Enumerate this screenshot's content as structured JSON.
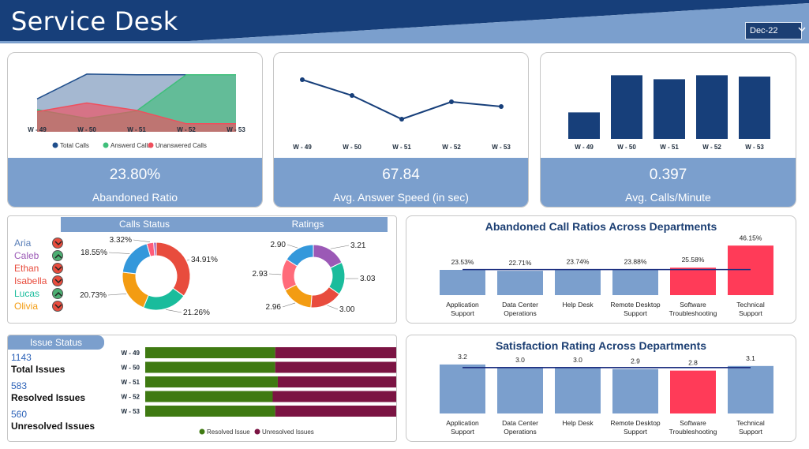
{
  "header": {
    "title": "Service Desk",
    "month_selector": "Dec-22",
    "colors": {
      "navy": "#173f7a",
      "steel": "#7b9fcd"
    }
  },
  "kpis": {
    "abandoned": {
      "value": "23.80%",
      "label": "Abandoned Ratio"
    },
    "answer_speed": {
      "value": "67.84",
      "label": "Avg. Answer Speed (in sec)"
    },
    "calls_per_minute": {
      "value": "0.397",
      "label": "Avg. Calls/Minute"
    }
  },
  "people": [
    {
      "name": "Aria",
      "trend": "down",
      "color": "#5a7fb8"
    },
    {
      "name": "Caleb",
      "trend": "up",
      "color": "#9b59b6"
    },
    {
      "name": "Ethan",
      "trend": "down",
      "color": "#e84c3d"
    },
    {
      "name": "Isabella",
      "trend": "down",
      "color": "#e84c3d"
    },
    {
      "name": "Lucas",
      "trend": "up",
      "color": "#1abc9c"
    },
    {
      "name": "Olivia",
      "trend": "down",
      "color": "#f39c12"
    }
  ],
  "panels": {
    "calls_status_header": "Calls Status",
    "ratings_header": "Ratings",
    "abandoned_dept_title": "Abandoned Call Ratios Across Departments",
    "satisfaction_title": "Satisfaction Rating Across Departments",
    "issue_status_header": "Issue Status"
  },
  "issues": {
    "total": {
      "value": "1143",
      "label": "Total Issues"
    },
    "resolved": {
      "value": "583",
      "label": "Resolved Issues"
    },
    "unresolved": {
      "value": "560",
      "label": "Unresolved Issues"
    }
  },
  "chart_data": [
    {
      "id": "calls_area",
      "type": "area",
      "categories": [
        "W - 49",
        "W - 50",
        "W - 51",
        "W - 52",
        "W - 53"
      ],
      "series": [
        {
          "name": "Total Calls",
          "color": "#1f4e8c",
          "values": [
            49,
            86,
            85,
            85,
            85
          ]
        },
        {
          "name": "Answerd Calls",
          "color": "#3fbf7a",
          "values": [
            33,
            20,
            31,
            85,
            85
          ]
        },
        {
          "name": "Unanswered Calls",
          "color": "#ef4f5d",
          "values": [
            30,
            43,
            32,
            12,
            12
          ]
        }
      ],
      "ylim": [
        0,
        100
      ]
    },
    {
      "id": "answer_speed_line",
      "type": "line",
      "categories": [
        "W - 49",
        "W - 50",
        "W - 51",
        "W - 52",
        "W - 53"
      ],
      "series": [
        {
          "values": [
            78,
            68,
            53,
            64,
            61
          ],
          "color": "#173f7a"
        }
      ],
      "ylim": [
        40,
        85
      ]
    },
    {
      "id": "calls_per_minute_bars",
      "type": "bar",
      "categories": [
        "W - 49",
        "W - 50",
        "W - 51",
        "W - 52",
        "W - 53"
      ],
      "values": [
        0.2,
        0.48,
        0.45,
        0.48,
        0.47
      ],
      "ylim": [
        0,
        0.5
      ],
      "color": "#173f7a"
    },
    {
      "id": "calls_status_donut",
      "type": "pie",
      "slices": [
        {
          "value": 34.91,
          "label": "34.91%",
          "color": "#e84c3d"
        },
        {
          "value": 21.26,
          "label": "21.26%",
          "color": "#1abc9c"
        },
        {
          "value": 20.73,
          "label": "20.73%",
          "color": "#f39c12"
        },
        {
          "value": 18.55,
          "label": "18.55%",
          "color": "#3498db"
        },
        {
          "value": 3.32,
          "label": "3.32%",
          "color": "#ff5c7a"
        },
        {
          "value": 1.23,
          "label": "",
          "color": "#9b59b6"
        }
      ]
    },
    {
      "id": "ratings_donut",
      "type": "pie",
      "slices": [
        {
          "value": 3.21,
          "label": "3.21",
          "color": "#9b59b6"
        },
        {
          "value": 3.03,
          "label": "3.03",
          "color": "#1abc9c"
        },
        {
          "value": 3.0,
          "label": "3.00",
          "color": "#e84c3d"
        },
        {
          "value": 2.96,
          "label": "2.96",
          "color": "#f39c12"
        },
        {
          "value": 2.93,
          "label": "2.93",
          "color": "#ff6b7a"
        },
        {
          "value": 2.9,
          "label": "2.90",
          "color": "#3498db"
        }
      ]
    },
    {
      "id": "abandoned_by_department",
      "type": "bar",
      "categories": [
        "Application Support",
        "Data Center Operations",
        "Help Desk",
        "Remote Desktop Support",
        "Software Troubleshooting",
        "Technical Support"
      ],
      "values": [
        23.53,
        22.71,
        23.74,
        23.88,
        25.58,
        46.15
      ],
      "labels": [
        "23.53%",
        "22.71%",
        "23.74%",
        "23.88%",
        "25.58%",
        "46.15%"
      ],
      "highlight": [
        4,
        5
      ],
      "reference": 23.8,
      "ylim": [
        0,
        50
      ],
      "colors": {
        "normal": "#7b9fcd",
        "highlight": "#ff3b58",
        "line": "#1c2f80"
      }
    },
    {
      "id": "satisfaction_by_department",
      "type": "bar",
      "categories": [
        "Application Support",
        "Data Center Operations",
        "Help Desk",
        "Remote Desktop Support",
        "Software Troubleshooting",
        "Technical Support"
      ],
      "values": [
        3.2,
        3.0,
        3.0,
        2.9,
        2.8,
        3.1
      ],
      "labels": [
        "3.2",
        "3.0",
        "3.0",
        "2.9",
        "2.8",
        "3.1"
      ],
      "highlight": [
        4
      ],
      "reference": 3.0,
      "ylim": [
        0,
        3.4
      ],
      "colors": {
        "normal": "#7b9fcd",
        "highlight": "#ff3b58",
        "line": "#1c2f80"
      }
    },
    {
      "id": "issue_status_bars",
      "type": "bar",
      "orientation": "horizontal",
      "stacked": true,
      "categories": [
        "W - 49",
        "W - 50",
        "W - 51",
        "W - 52",
        "W - 53"
      ],
      "series": [
        {
          "name": "Resolved Issue",
          "color": "#3f7a12",
          "values": [
            51,
            51,
            52,
            50,
            51
          ]
        },
        {
          "name": "Unresolved Issues",
          "color": "#7b1443",
          "values": [
            49,
            49,
            48,
            50,
            49
          ]
        }
      ]
    }
  ]
}
